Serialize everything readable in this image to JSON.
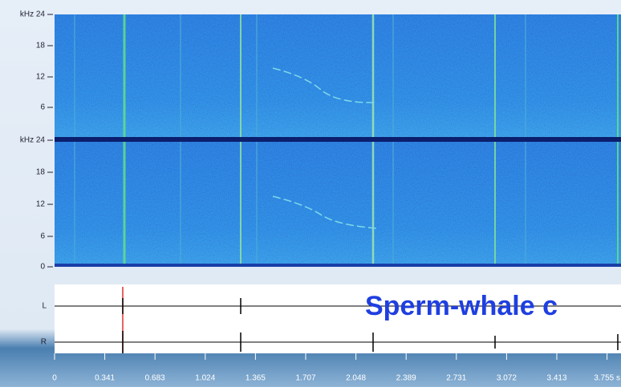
{
  "spectrogram": {
    "upper_axis": [
      "kHz 24",
      "18",
      "12",
      "6"
    ],
    "lower_axis": [
      "kHz 24",
      "18",
      "12",
      "6",
      "0"
    ]
  },
  "waveform": {
    "channels": [
      "L",
      "R"
    ]
  },
  "time_axis": {
    "labels": [
      "0",
      "0.341",
      "0.683",
      "1.024",
      "1.365",
      "1.707",
      "2.048",
      "2.389",
      "2.731",
      "3.072",
      "3.413",
      "3.755 s"
    ]
  },
  "overlay_title": "Sperm-whale c"
}
